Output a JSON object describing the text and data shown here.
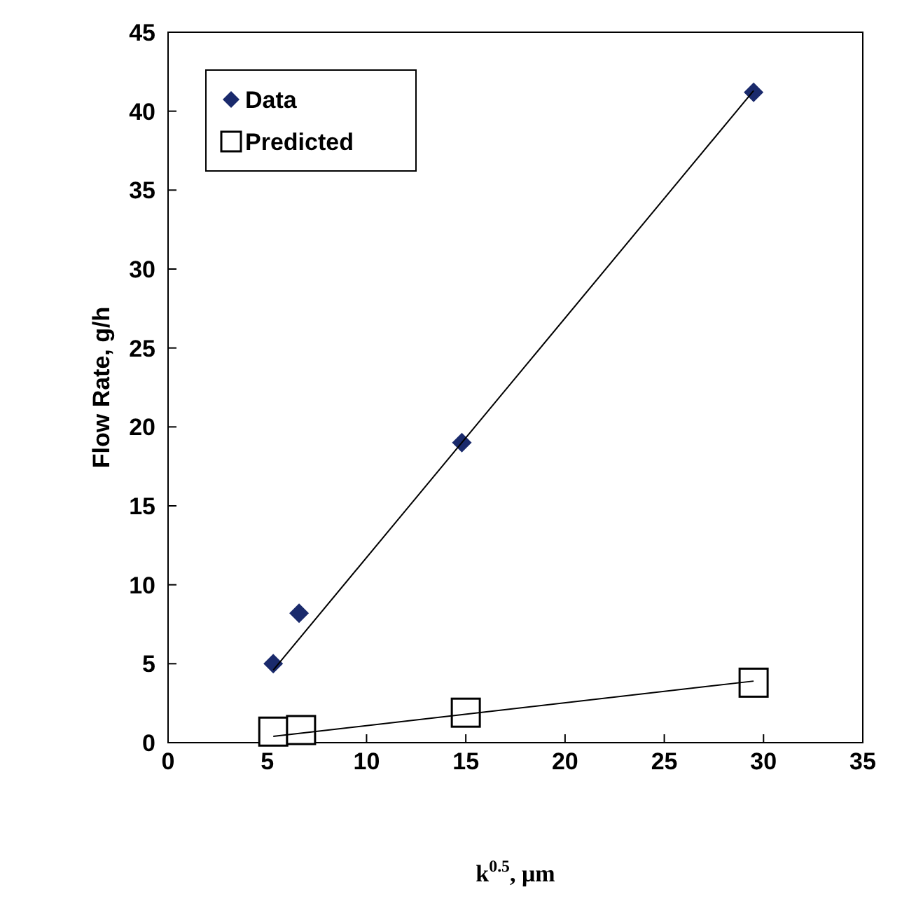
{
  "chart_data": {
    "type": "scatter",
    "xlabel": "k$^{0.5}$, μm",
    "ylabel": "Flow Rate, g/h",
    "xlim": [
      0,
      35
    ],
    "xticks": [
      0,
      5,
      10,
      15,
      20,
      25,
      30,
      35
    ],
    "ylim": [
      0,
      45
    ],
    "yticks": [
      0,
      5,
      10,
      15,
      20,
      25,
      30,
      35,
      40,
      45
    ],
    "grid": false,
    "legend": "top left",
    "series": [
      {
        "name": "Data",
        "color": "#1a2a6c",
        "marker": "diamond",
        "x": [
          5.3,
          6.6,
          14.8,
          29.5
        ],
        "values": [
          5.0,
          8.2,
          19.0,
          41.2
        ]
      },
      {
        "name": "Predicted",
        "color": "#000000",
        "marker": "square",
        "x": [
          5.3,
          6.7,
          15.0,
          29.5
        ],
        "values": [
          0.7,
          0.8,
          1.9,
          3.8
        ]
      },
      {
        "type": "line",
        "color": "#000000",
        "marker": "none",
        "x": [
          5.3,
          29.5
        ],
        "values": [
          4.6,
          41.3
        ]
      },
      {
        "type": "line",
        "color": "#000000",
        "marker": "none",
        "x": [
          5.3,
          29.5
        ],
        "values": [
          0.4,
          3.9
        ]
      }
    ]
  }
}
